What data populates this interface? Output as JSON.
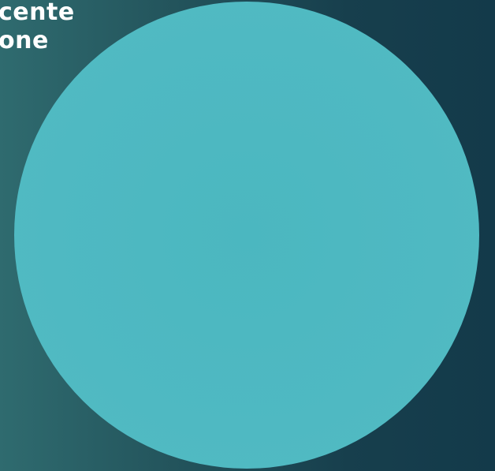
{
  "slide": {
    "title_lines": [
      "cente",
      "one"
    ],
    "colors": {
      "background_left": "#2f6b6f",
      "background_right": "#133a4a",
      "circle_fill": "#4fb9c2",
      "title_text": "#ffffff"
    }
  }
}
